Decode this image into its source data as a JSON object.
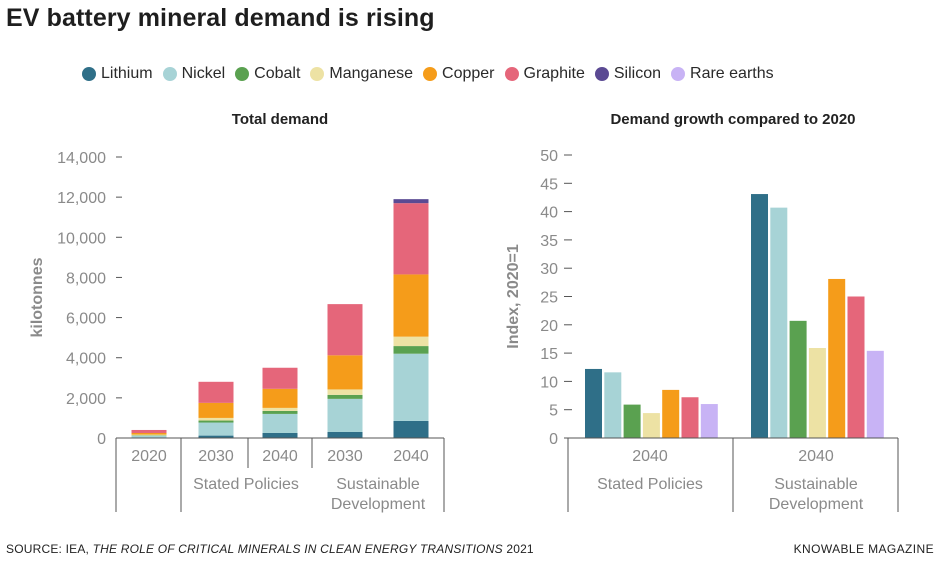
{
  "header": {
    "title": "EV battery mineral demand is rising"
  },
  "legend": {
    "items": [
      {
        "name": "Lithium",
        "color": "#2f6f88"
      },
      {
        "name": "Nickel",
        "color": "#a7d3d6"
      },
      {
        "name": "Cobalt",
        "color": "#5aa150"
      },
      {
        "name": "Manganese",
        "color": "#ede2a4"
      },
      {
        "name": "Copper",
        "color": "#f59c1a"
      },
      {
        "name": "Graphite",
        "color": "#e5667a"
      },
      {
        "name": "Silicon",
        "color": "#5b4a93"
      },
      {
        "name": "Rare earths",
        "color": "#c8b3f5"
      }
    ]
  },
  "footer": {
    "source_prefix": "SOURCE: IEA, ",
    "source_title": "THE ROLE OF CRITICAL MINERALS IN CLEAN ENERGY TRANSITIONS",
    "source_suffix": " 2021",
    "brand": "KNOWABLE MAGAZINE"
  },
  "chart_data": [
    {
      "type": "bar",
      "stacked": true,
      "title": "Total demand",
      "ylabel": "kilotonnes",
      "xlabel": "",
      "ylim": [
        0,
        14000
      ],
      "yticks": [
        0,
        2000,
        4000,
        6000,
        8000,
        10000,
        12000,
        14000
      ],
      "ytick_labels": [
        "0",
        "2,000",
        "4,000",
        "6,000",
        "8,000",
        "10,000",
        "12,000",
        "14,000"
      ],
      "categories": [
        "2020",
        "2030",
        "2040",
        "2030",
        "2040"
      ],
      "groups": [
        {
          "label": "",
          "categories": [
            0
          ]
        },
        {
          "label": "Stated Policies",
          "categories": [
            1,
            2
          ]
        },
        {
          "label": "Sustainable\nDevelopment",
          "categories": [
            3,
            4
          ]
        }
      ],
      "series": [
        {
          "name": "Lithium",
          "values": [
            20,
            120,
            250,
            300,
            850
          ]
        },
        {
          "name": "Nickel",
          "values": [
            90,
            650,
            950,
            1650,
            3350
          ]
        },
        {
          "name": "Cobalt",
          "values": [
            20,
            100,
            150,
            200,
            380
          ]
        },
        {
          "name": "Manganese",
          "values": [
            40,
            130,
            150,
            270,
            470
          ]
        },
        {
          "name": "Copper",
          "values": [
            80,
            750,
            950,
            1700,
            3100
          ]
        },
        {
          "name": "Graphite",
          "values": [
            150,
            1050,
            1050,
            2550,
            3550
          ]
        },
        {
          "name": "Silicon",
          "values": [
            0,
            0,
            0,
            0,
            200
          ]
        },
        {
          "name": "Rare earths",
          "values": [
            0,
            0,
            0,
            0,
            0
          ]
        }
      ]
    },
    {
      "type": "bar",
      "stacked": false,
      "title": "Demand growth compared to 2020",
      "ylabel": "Index, 2020=1",
      "xlabel": "",
      "ylim": [
        0,
        50
      ],
      "yticks": [
        0,
        5,
        10,
        15,
        20,
        25,
        30,
        35,
        40,
        45,
        50
      ],
      "ytick_labels": [
        "0",
        "5",
        "10",
        "15",
        "20",
        "25",
        "30",
        "35",
        "40",
        "45",
        "50"
      ],
      "categories": [
        "2040",
        "2040"
      ],
      "groups": [
        {
          "label": "Stated Policies",
          "categories": [
            0
          ]
        },
        {
          "label": "Sustainable\nDevelopment",
          "categories": [
            1
          ]
        }
      ],
      "series": [
        {
          "name": "Lithium",
          "values": [
            12.2,
            43.1
          ]
        },
        {
          "name": "Nickel",
          "values": [
            11.6,
            40.7
          ]
        },
        {
          "name": "Cobalt",
          "values": [
            5.9,
            20.7
          ]
        },
        {
          "name": "Manganese",
          "values": [
            4.4,
            15.9
          ]
        },
        {
          "name": "Copper",
          "values": [
            8.5,
            28.1
          ]
        },
        {
          "name": "Graphite",
          "values": [
            7.2,
            25.0
          ]
        },
        {
          "name": "Silicon",
          "values": [
            0,
            0
          ]
        },
        {
          "name": "Rare earths",
          "values": [
            6.0,
            15.4
          ]
        }
      ]
    }
  ]
}
